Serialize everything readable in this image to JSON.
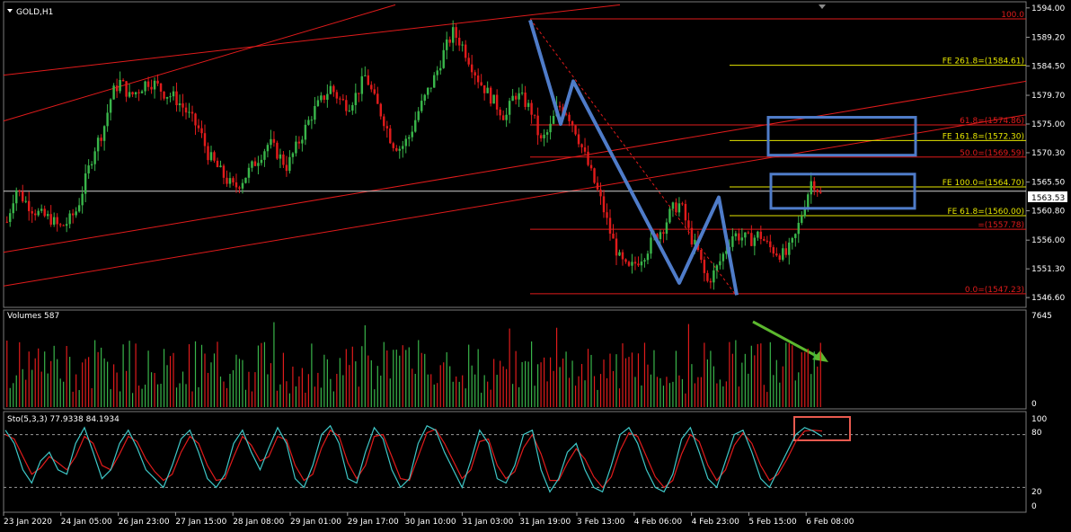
{
  "window": {
    "title": "GOLD,H1"
  },
  "panels": {
    "volumes_label": "Volumes 587",
    "volumes_max": "7645",
    "volumes_min": "0",
    "stoch_label": "Sto(5,3,3) 77.9338 84.1934",
    "stoch_ticks": [
      "100",
      "80",
      "20",
      "0"
    ]
  },
  "colors": {
    "bull": "#39b54a",
    "bear": "#e01b1b",
    "grid": "#5a5a5a",
    "fib": "#e01b1b",
    "fe": "#e6e600",
    "channel": "#e01b1b",
    "arrow_blue": "#4f7cc9",
    "arrow_green": "#5cb82e",
    "box_red": "#e85a4f",
    "stoch_main": "#3ec7c7",
    "stoch_signal": "#e01b1b"
  },
  "current_price": "1563.53",
  "chart_data": {
    "type": "candlestick",
    "symbol": "GOLD",
    "timeframe": "H1",
    "price_axis": [
      "1594.00",
      "1589.20",
      "1584.50",
      "1579.70",
      "1575.00",
      "1570.30",
      "1565.50",
      "1560.80",
      "1556.00",
      "1551.30",
      "1546.60"
    ],
    "ylim": [
      1545.0,
      1595.0
    ],
    "time_axis": [
      "23 Jan 2020",
      "24 Jan 05:00",
      "26 Jan 23:00",
      "27 Jan 15:00",
      "28 Jan 08:00",
      "29 Jan 01:00",
      "29 Jan 17:00",
      "30 Jan 10:00",
      "31 Jan 03:00",
      "31 Jan 19:00",
      "3 Feb 13:00",
      "4 Feb 06:00",
      "4 Feb 23:00",
      "5 Feb 15:00",
      "6 Feb 08:00"
    ],
    "close_path": [
      1559.0,
      1564.5,
      1562.5,
      1561.0,
      1560.0,
      1559.5,
      1558.0,
      1559.0,
      1561.0,
      1566.0,
      1571.0,
      1574.0,
      1580.0,
      1582.0,
      1579.5,
      1580.5,
      1582.0,
      1581.5,
      1580.0,
      1579.5,
      1578.0,
      1576.0,
      1574.0,
      1570.0,
      1568.0,
      1566.0,
      1564.5,
      1566.0,
      1568.0,
      1570.0,
      1572.0,
      1570.0,
      1568.0,
      1571.0,
      1574.0,
      1577.0,
      1579.0,
      1581.0,
      1579.0,
      1578.0,
      1580.0,
      1583.0,
      1579.0,
      1576.0,
      1572.0,
      1571.0,
      1573.0,
      1577.0,
      1580.0,
      1583.0,
      1587.0,
      1590.0,
      1588.0,
      1585.0,
      1582.0,
      1580.0,
      1578.0,
      1576.0,
      1580.0,
      1579.0,
      1577.0,
      1572.0,
      1574.0,
      1578.0,
      1577.0,
      1574.0,
      1570.0,
      1566.0,
      1562.0,
      1557.0,
      1553.0,
      1551.0,
      1552.5,
      1554.0,
      1556.5,
      1558.0,
      1561.0,
      1562.0,
      1557.0,
      1554.0,
      1549.0,
      1551.0,
      1554.0,
      1557.0,
      1556.5,
      1556.0,
      1557.0,
      1555.0,
      1554.0,
      1553.5,
      1556.0,
      1561.0,
      1566.0,
      1563.5
    ],
    "fib_levels": [
      {
        "label": "100.0",
        "price": 1592.2
      },
      {
        "label": "61.8=(1574.86)",
        "price": 1574.86
      },
      {
        "label": "50.0=(1569.59)",
        "price": 1569.59
      },
      {
        "label": "=(1557.78)",
        "price": 1557.78
      },
      {
        "label": "0.0=(1547.23)",
        "price": 1547.23
      }
    ],
    "fe_levels": [
      {
        "label": "FE 261.8=(1584.61)",
        "price": 1584.61
      },
      {
        "label": "FE 161.8=(1572.30)",
        "price": 1572.3
      },
      {
        "label": "FE 100.0=(1564.70)",
        "price": 1564.7
      },
      {
        "label": "FE 61.8=(1560.00)",
        "price": 1560.0
      }
    ],
    "stoch_k_path": [
      85,
      70,
      40,
      25,
      50,
      60,
      40,
      35,
      70,
      88,
      60,
      30,
      40,
      70,
      85,
      65,
      40,
      30,
      20,
      45,
      75,
      85,
      60,
      30,
      20,
      35,
      70,
      85,
      60,
      40,
      65,
      88,
      70,
      30,
      20,
      45,
      80,
      90,
      70,
      30,
      25,
      60,
      88,
      75,
      40,
      20,
      30,
      70,
      90,
      85,
      60,
      40,
      20,
      50,
      85,
      70,
      30,
      25,
      45,
      80,
      85,
      40,
      15,
      30,
      60,
      70,
      40,
      20,
      15,
      45,
      80,
      88,
      70,
      40,
      20,
      15,
      35,
      75,
      88,
      60,
      30,
      20,
      50,
      80,
      85,
      60,
      30,
      20,
      40,
      60,
      80,
      88,
      84,
      78
    ],
    "stoch_d_path": [
      80,
      75,
      55,
      35,
      42,
      55,
      48,
      40,
      55,
      78,
      70,
      45,
      40,
      58,
      78,
      72,
      52,
      38,
      28,
      35,
      60,
      78,
      70,
      45,
      28,
      30,
      55,
      78,
      68,
      50,
      55,
      78,
      74,
      45,
      28,
      35,
      65,
      85,
      78,
      48,
      30,
      45,
      78,
      80,
      55,
      30,
      28,
      55,
      82,
      86,
      70,
      50,
      30,
      40,
      72,
      75,
      45,
      30,
      38,
      65,
      80,
      58,
      28,
      28,
      48,
      64,
      52,
      32,
      20,
      32,
      62,
      82,
      78,
      55,
      32,
      20,
      28,
      58,
      80,
      72,
      45,
      28,
      40,
      68,
      82,
      70,
      45,
      28,
      35,
      52,
      72,
      84,
      85,
      84
    ]
  }
}
